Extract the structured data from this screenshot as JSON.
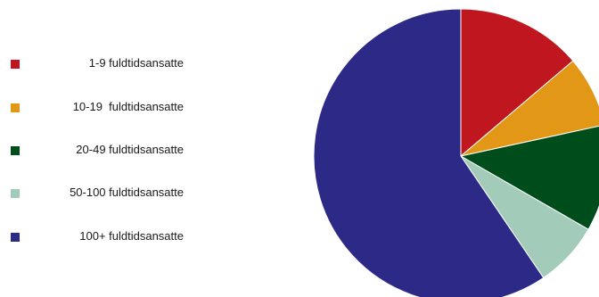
{
  "chart_data": {
    "type": "pie",
    "title": "",
    "categories": [
      "1-9 fuldtidsansatte",
      "10-19  fuldtidsansatte",
      "20-49 fuldtidsansatte",
      "50-100 fuldtidsansatte",
      "100+ fuldtidsansatte"
    ],
    "values": [
      13.8,
      7.8,
      11.7,
      7.2,
      59.5
    ],
    "units": "%",
    "legend_position": "left",
    "colors": [
      "#C0161F",
      "#E39716",
      "#004D1C",
      "#A2CBB9",
      "#2D2A87"
    ]
  }
}
